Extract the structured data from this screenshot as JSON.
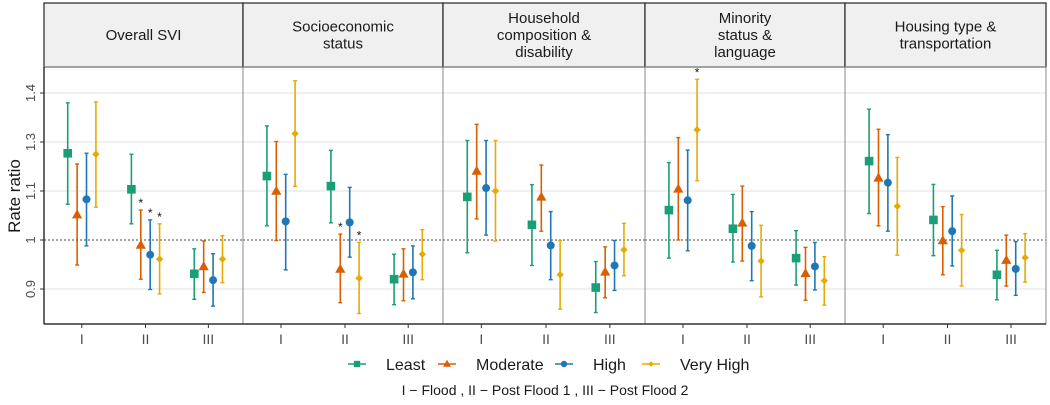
{
  "chart_data": {
    "type": "scatter",
    "subtype": "point-range (estimate with confidence interval), faceted",
    "ylabel": "Rate ratio",
    "xlabel": "",
    "y_ticks": [
      0.9,
      1,
      1.1,
      1.3,
      1.4
    ],
    "y_tick_labels": [
      "0.9",
      "1",
      "1.1",
      "1.3",
      "1.4"
    ],
    "reference_line": 1,
    "grid": true,
    "categories": [
      "I",
      "II",
      "III"
    ],
    "caption": "I − Flood , II − Post Flood 1 , III − Post Flood 2",
    "legend_position": "bottom",
    "series": [
      {
        "name": "Least",
        "color": "#1a9e77",
        "shape": "square"
      },
      {
        "name": "Moderate",
        "color": "#d95f02",
        "shape": "triangle"
      },
      {
        "name": "High",
        "color": "#1f78b4",
        "shape": "circle"
      },
      {
        "name": "Very High",
        "color": "#e6ab02",
        "shape": "diamond"
      }
    ],
    "significance_marker": "*",
    "facets": [
      {
        "title": "Overall SVI",
        "groups": [
          {
            "category": "I",
            "points": [
              {
                "series": "Least",
                "est": 1.254,
                "lo": 1.073,
                "hi": 1.38,
                "sig": false
              },
              {
                "series": "Moderate",
                "est": 1.052,
                "lo": 0.949,
                "hi": 1.21,
                "sig": false
              },
              {
                "series": "High",
                "est": 1.083,
                "lo": 0.988,
                "hi": 1.254,
                "sig": false
              },
              {
                "series": "Very High",
                "est": 1.25,
                "lo": 1.067,
                "hi": 1.382,
                "sig": false
              }
            ]
          },
          {
            "category": "II",
            "points": [
              {
                "series": "Least",
                "est": 1.107,
                "lo": 1.033,
                "hi": 1.25,
                "sig": false
              },
              {
                "series": "Moderate",
                "est": 0.99,
                "lo": 0.92,
                "hi": 1.061,
                "sig": true
              },
              {
                "series": "High",
                "est": 0.97,
                "lo": 0.899,
                "hi": 1.041,
                "sig": true
              },
              {
                "series": "Very High",
                "est": 0.961,
                "lo": 0.89,
                "hi": 1.033,
                "sig": true
              }
            ]
          },
          {
            "category": "III",
            "points": [
              {
                "series": "Least",
                "est": 0.931,
                "lo": 0.879,
                "hi": 0.982,
                "sig": false
              },
              {
                "series": "Moderate",
                "est": 0.946,
                "lo": 0.893,
                "hi": 0.998,
                "sig": false
              },
              {
                "series": "High",
                "est": 0.918,
                "lo": 0.865,
                "hi": 0.972,
                "sig": false
              },
              {
                "series": "Very High",
                "est": 0.961,
                "lo": 0.913,
                "hi": 1.009,
                "sig": false
              }
            ]
          }
        ]
      },
      {
        "title": "Socioeconomic\nstatus",
        "groups": [
          {
            "category": "I",
            "points": [
              {
                "series": "Least",
                "est": 1.161,
                "lo": 1.029,
                "hi": 1.333,
                "sig": false
              },
              {
                "series": "Moderate",
                "est": 1.1,
                "lo": 0.999,
                "hi": 1.301,
                "sig": false
              },
              {
                "series": "High",
                "est": 1.038,
                "lo": 0.939,
                "hi": 1.168,
                "sig": false
              },
              {
                "series": "Very High",
                "est": 1.317,
                "lo": 1.119,
                "hi": 1.425,
                "sig": false
              }
            ]
          },
          {
            "category": "II",
            "points": [
              {
                "series": "Least",
                "est": 1.12,
                "lo": 1.035,
                "hi": 1.266,
                "sig": false
              },
              {
                "series": "Moderate",
                "est": 0.941,
                "lo": 0.872,
                "hi": 1.012,
                "sig": true
              },
              {
                "series": "High",
                "est": 1.036,
                "lo": 0.965,
                "hi": 1.115,
                "sig": false
              },
              {
                "series": "Very High",
                "est": 0.922,
                "lo": 0.85,
                "hi": 0.995,
                "sig": true
              }
            ]
          },
          {
            "category": "III",
            "points": [
              {
                "series": "Least",
                "est": 0.92,
                "lo": 0.868,
                "hi": 0.971,
                "sig": false
              },
              {
                "series": "Moderate",
                "est": 0.931,
                "lo": 0.876,
                "hi": 0.982,
                "sig": false
              },
              {
                "series": "High",
                "est": 0.934,
                "lo": 0.88,
                "hi": 0.988,
                "sig": false
              },
              {
                "series": "Very High",
                "est": 0.971,
                "lo": 0.919,
                "hi": 1.021,
                "sig": false
              }
            ]
          }
        ]
      },
      {
        "title": "Household\ncomposition &\ndisability",
        "groups": [
          {
            "category": "I",
            "points": [
              {
                "series": "Least",
                "est": 1.088,
                "lo": 0.974,
                "hi": 1.303,
                "sig": false
              },
              {
                "series": "Moderate",
                "est": 1.182,
                "lo": 1.043,
                "hi": 1.336,
                "sig": false
              },
              {
                "series": "High",
                "est": 1.112,
                "lo": 1.01,
                "hi": 1.303,
                "sig": false
              },
              {
                "series": "Very High",
                "est": 1.1,
                "lo": 0.998,
                "hi": 1.303,
                "sig": false
              }
            ]
          },
          {
            "category": "II",
            "points": [
              {
                "series": "Least",
                "est": 1.031,
                "lo": 0.948,
                "hi": 1.126,
                "sig": false
              },
              {
                "series": "Moderate",
                "est": 1.088,
                "lo": 1.018,
                "hi": 1.206,
                "sig": false
              },
              {
                "series": "High",
                "est": 0.989,
                "lo": 0.919,
                "hi": 1.058,
                "sig": false
              },
              {
                "series": "Very High",
                "est": 0.929,
                "lo": 0.859,
                "hi": 0.999,
                "sig": false
              }
            ]
          },
          {
            "category": "III",
            "points": [
              {
                "series": "Least",
                "est": 0.903,
                "lo": 0.852,
                "hi": 0.956,
                "sig": false
              },
              {
                "series": "Moderate",
                "est": 0.935,
                "lo": 0.882,
                "hi": 0.986,
                "sig": false
              },
              {
                "series": "High",
                "est": 0.948,
                "lo": 0.897,
                "hi": 0.999,
                "sig": false
              },
              {
                "series": "Very High",
                "est": 0.98,
                "lo": 0.927,
                "hi": 1.034,
                "sig": false
              }
            ]
          }
        ]
      },
      {
        "title": "Minority\nstatus &\nlanguage",
        "groups": [
          {
            "category": "I",
            "points": [
              {
                "series": "Least",
                "est": 1.061,
                "lo": 0.963,
                "hi": 1.216,
                "sig": false
              },
              {
                "series": "Moderate",
                "est": 1.109,
                "lo": 1.0,
                "hi": 1.309,
                "sig": false
              },
              {
                "series": "High",
                "est": 1.081,
                "lo": 0.978,
                "hi": 1.267,
                "sig": false
              },
              {
                "series": "Very High",
                "est": 1.325,
                "lo": 1.142,
                "hi": 1.428,
                "sig": true
              }
            ]
          },
          {
            "category": "II",
            "points": [
              {
                "series": "Least",
                "est": 1.023,
                "lo": 0.955,
                "hi": 1.093,
                "sig": false
              },
              {
                "series": "Moderate",
                "est": 1.035,
                "lo": 0.957,
                "hi": 1.12,
                "sig": false
              },
              {
                "series": "High",
                "est": 0.988,
                "lo": 0.917,
                "hi": 1.058,
                "sig": false
              },
              {
                "series": "Very High",
                "est": 0.957,
                "lo": 0.884,
                "hi": 1.03,
                "sig": false
              }
            ]
          },
          {
            "category": "III",
            "points": [
              {
                "series": "Least",
                "est": 0.963,
                "lo": 0.908,
                "hi": 1.019,
                "sig": false
              },
              {
                "series": "Moderate",
                "est": 0.932,
                "lo": 0.877,
                "hi": 0.985,
                "sig": false
              },
              {
                "series": "High",
                "est": 0.946,
                "lo": 0.898,
                "hi": 0.995,
                "sig": false
              },
              {
                "series": "Very High",
                "est": 0.917,
                "lo": 0.867,
                "hi": 0.966,
                "sig": false
              }
            ]
          }
        ]
      },
      {
        "title": "Housing type &\ntransportation",
        "groups": [
          {
            "category": "I",
            "points": [
              {
                "series": "Least",
                "est": 1.222,
                "lo": 1.054,
                "hi": 1.367,
                "sig": false
              },
              {
                "series": "Moderate",
                "est": 1.154,
                "lo": 1.029,
                "hi": 1.326,
                "sig": false
              },
              {
                "series": "High",
                "est": 1.134,
                "lo": 1.018,
                "hi": 1.315,
                "sig": false
              },
              {
                "series": "Very High",
                "est": 1.069,
                "lo": 0.969,
                "hi": 1.237,
                "sig": false
              }
            ]
          },
          {
            "category": "II",
            "points": [
              {
                "series": "Least",
                "est": 1.041,
                "lo": 0.968,
                "hi": 1.127,
                "sig": false
              },
              {
                "series": "Moderate",
                "est": 0.999,
                "lo": 0.929,
                "hi": 1.068,
                "sig": false
              },
              {
                "series": "High",
                "est": 1.018,
                "lo": 0.947,
                "hi": 1.09,
                "sig": false
              },
              {
                "series": "Very High",
                "est": 0.979,
                "lo": 0.906,
                "hi": 1.052,
                "sig": false
              }
            ]
          },
          {
            "category": "III",
            "points": [
              {
                "series": "Least",
                "est": 0.929,
                "lo": 0.878,
                "hi": 0.979,
                "sig": false
              },
              {
                "series": "Moderate",
                "est": 0.959,
                "lo": 0.906,
                "hi": 1.01,
                "sig": false
              },
              {
                "series": "High",
                "est": 0.941,
                "lo": 0.887,
                "hi": 0.997,
                "sig": false
              },
              {
                "series": "Very High",
                "est": 0.964,
                "lo": 0.914,
                "hi": 1.013,
                "sig": false
              }
            ]
          }
        ]
      }
    ]
  }
}
